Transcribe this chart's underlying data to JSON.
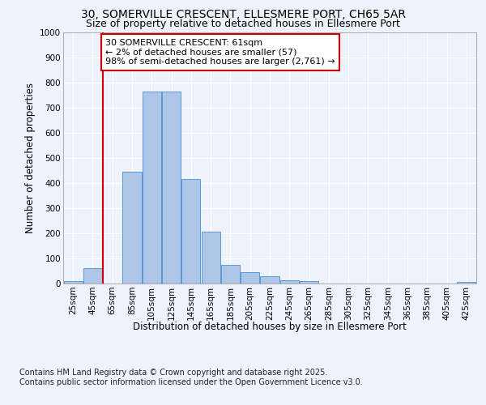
{
  "title1": "30, SOMERVILLE CRESCENT, ELLESMERE PORT, CH65 5AR",
  "title2": "Size of property relative to detached houses in Ellesmere Port",
  "xlabel": "Distribution of detached houses by size in Ellesmere Port",
  "ylabel": "Number of detached properties",
  "bin_labels": [
    "25sqm",
    "45sqm",
    "65sqm",
    "85sqm",
    "105sqm",
    "125sqm",
    "145sqm",
    "165sqm",
    "185sqm",
    "205sqm",
    "225sqm",
    "245sqm",
    "265sqm",
    "285sqm",
    "305sqm",
    "325sqm",
    "345sqm",
    "365sqm",
    "385sqm",
    "405sqm",
    "425sqm"
  ],
  "bin_values": [
    10,
    62,
    0,
    445,
    765,
    765,
    415,
    205,
    75,
    45,
    28,
    12,
    10,
    0,
    0,
    0,
    0,
    0,
    0,
    0,
    5
  ],
  "bar_color": "#aec6e8",
  "bar_edge_color": "#5b9bd5",
  "vline_x_index": 1,
  "vline_color": "#cc0000",
  "annotation_text": "30 SOMERVILLE CRESCENT: 61sqm\n← 2% of detached houses are smaller (57)\n98% of semi-detached houses are larger (2,761) →",
  "annotation_box_color": "#ffffff",
  "annotation_box_edge": "#cc0000",
  "ylim": [
    0,
    1000
  ],
  "yticks": [
    0,
    100,
    200,
    300,
    400,
    500,
    600,
    700,
    800,
    900,
    1000
  ],
  "background_color": "#eef2fa",
  "grid_color": "#ffffff",
  "footer": "Contains HM Land Registry data © Crown copyright and database right 2025.\nContains public sector information licensed under the Open Government Licence v3.0.",
  "title_fontsize": 10,
  "subtitle_fontsize": 9,
  "axis_label_fontsize": 8.5,
  "tick_fontsize": 7.5,
  "annotation_fontsize": 8,
  "footer_fontsize": 7
}
